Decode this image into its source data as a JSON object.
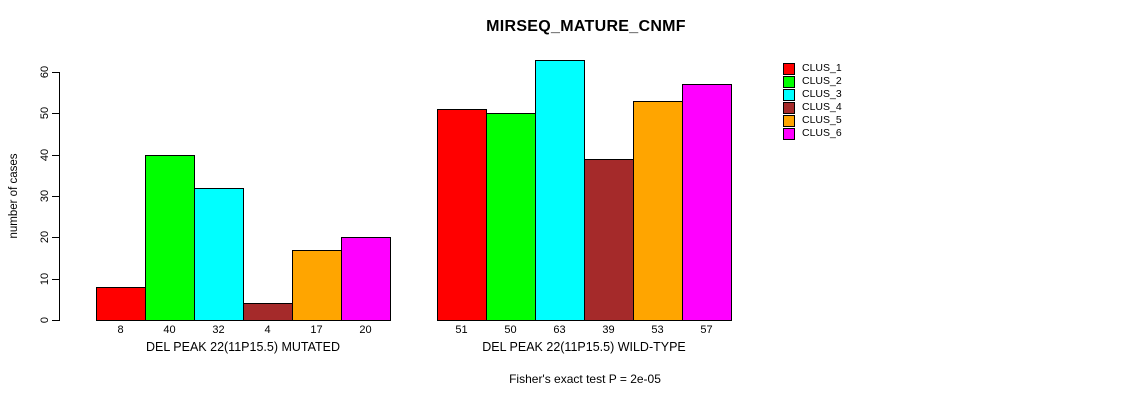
{
  "chart_data": {
    "type": "bar",
    "title": "MIRSEQ_MATURE_CNMF",
    "ylabel": "number of cases",
    "ylim": [
      0,
      60
    ],
    "yticks": [
      0,
      10,
      20,
      30,
      40,
      50,
      60
    ],
    "grid": false,
    "legend_position": "right",
    "series": [
      {
        "name": "CLUS_1",
        "color": "#FF0000"
      },
      {
        "name": "CLUS_2",
        "color": "#00FF00"
      },
      {
        "name": "CLUS_3",
        "color": "#00FFFF"
      },
      {
        "name": "CLUS_4",
        "color": "#A52A2A"
      },
      {
        "name": "CLUS_5",
        "color": "#FFA500"
      },
      {
        "name": "CLUS_6",
        "color": "#FF00FF"
      }
    ],
    "groups": [
      {
        "label": "DEL PEAK 22(11P15.5) MUTATED",
        "values": [
          8,
          40,
          32,
          4,
          17,
          20
        ]
      },
      {
        "label": "DEL PEAK 22(11P15.5) WILD-TYPE",
        "values": [
          51,
          50,
          63,
          39,
          53,
          57
        ]
      }
    ],
    "footnote": "Fisher's exact test P = 2e-05"
  }
}
